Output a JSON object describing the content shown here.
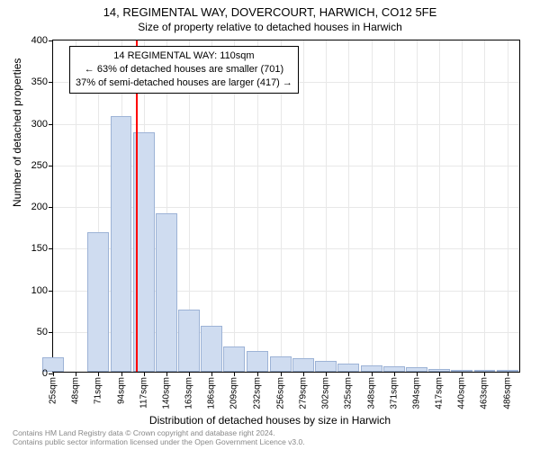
{
  "title": "14, REGIMENTAL WAY, DOVERCOURT, HARWICH, CO12 5FE",
  "subtitle": "Size of property relative to detached houses in Harwich",
  "ylabel": "Number of detached properties",
  "xlabel": "Distribution of detached houses by size in Harwich",
  "chart": {
    "type": "histogram",
    "ylim": [
      0,
      400
    ],
    "ytick_step": 50,
    "yticks": [
      0,
      50,
      100,
      150,
      200,
      250,
      300,
      350,
      400
    ],
    "xticks": [
      "25sqm",
      "48sqm",
      "71sqm",
      "94sqm",
      "117sqm",
      "140sqm",
      "163sqm",
      "186sqm",
      "209sqm",
      "232sqm",
      "256sqm",
      "279sqm",
      "302sqm",
      "325sqm",
      "348sqm",
      "371sqm",
      "394sqm",
      "417sqm",
      "440sqm",
      "463sqm",
      "486sqm"
    ],
    "xlim": [
      25,
      500
    ],
    "values": [
      17,
      0,
      168,
      307,
      288,
      190,
      75,
      55,
      30,
      25,
      18,
      16,
      13,
      10,
      8,
      7,
      5,
      3,
      2,
      2,
      1
    ],
    "bar_fill": "#cfdcf0",
    "bar_stroke": "#9db3d6",
    "grid_color": "#e8e8e8",
    "background_color": "#ffffff",
    "marker": {
      "x": 110,
      "color": "#ff0000",
      "width": 2
    },
    "bar_width_ratio": 0.95
  },
  "annotation": {
    "line1": "14 REGIMENTAL WAY: 110sqm",
    "line2": "← 63% of detached houses are smaller (701)",
    "line3": "37% of semi-detached houses are larger (417) →"
  },
  "footer": {
    "line1": "Contains HM Land Registry data © Crown copyright and database right 2024.",
    "line2": "Contains public sector information licensed under the Open Government Licence v3.0."
  }
}
